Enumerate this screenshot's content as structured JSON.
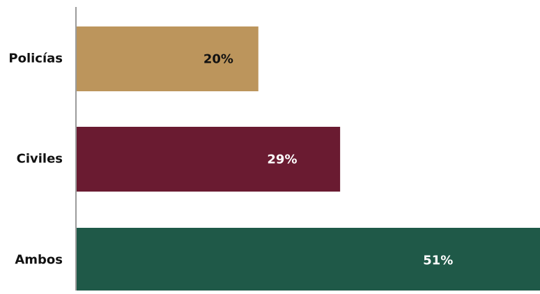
{
  "chart_data": {
    "type": "bar",
    "orientation": "horizontal",
    "categories": [
      "Policías",
      "Civiles",
      "Ambos"
    ],
    "values": [
      20,
      29,
      51
    ],
    "value_labels": [
      "20%",
      "29%",
      "51%"
    ],
    "colors": [
      "#BC955C",
      "#6A1B31",
      "#1F5948"
    ],
    "label_colors": [
      "#111111",
      "#ffffff",
      "#ffffff"
    ],
    "title": "",
    "xlabel": "",
    "ylabel": "",
    "xlim": [
      0,
      51
    ],
    "grid": false,
    "legend": "none"
  }
}
